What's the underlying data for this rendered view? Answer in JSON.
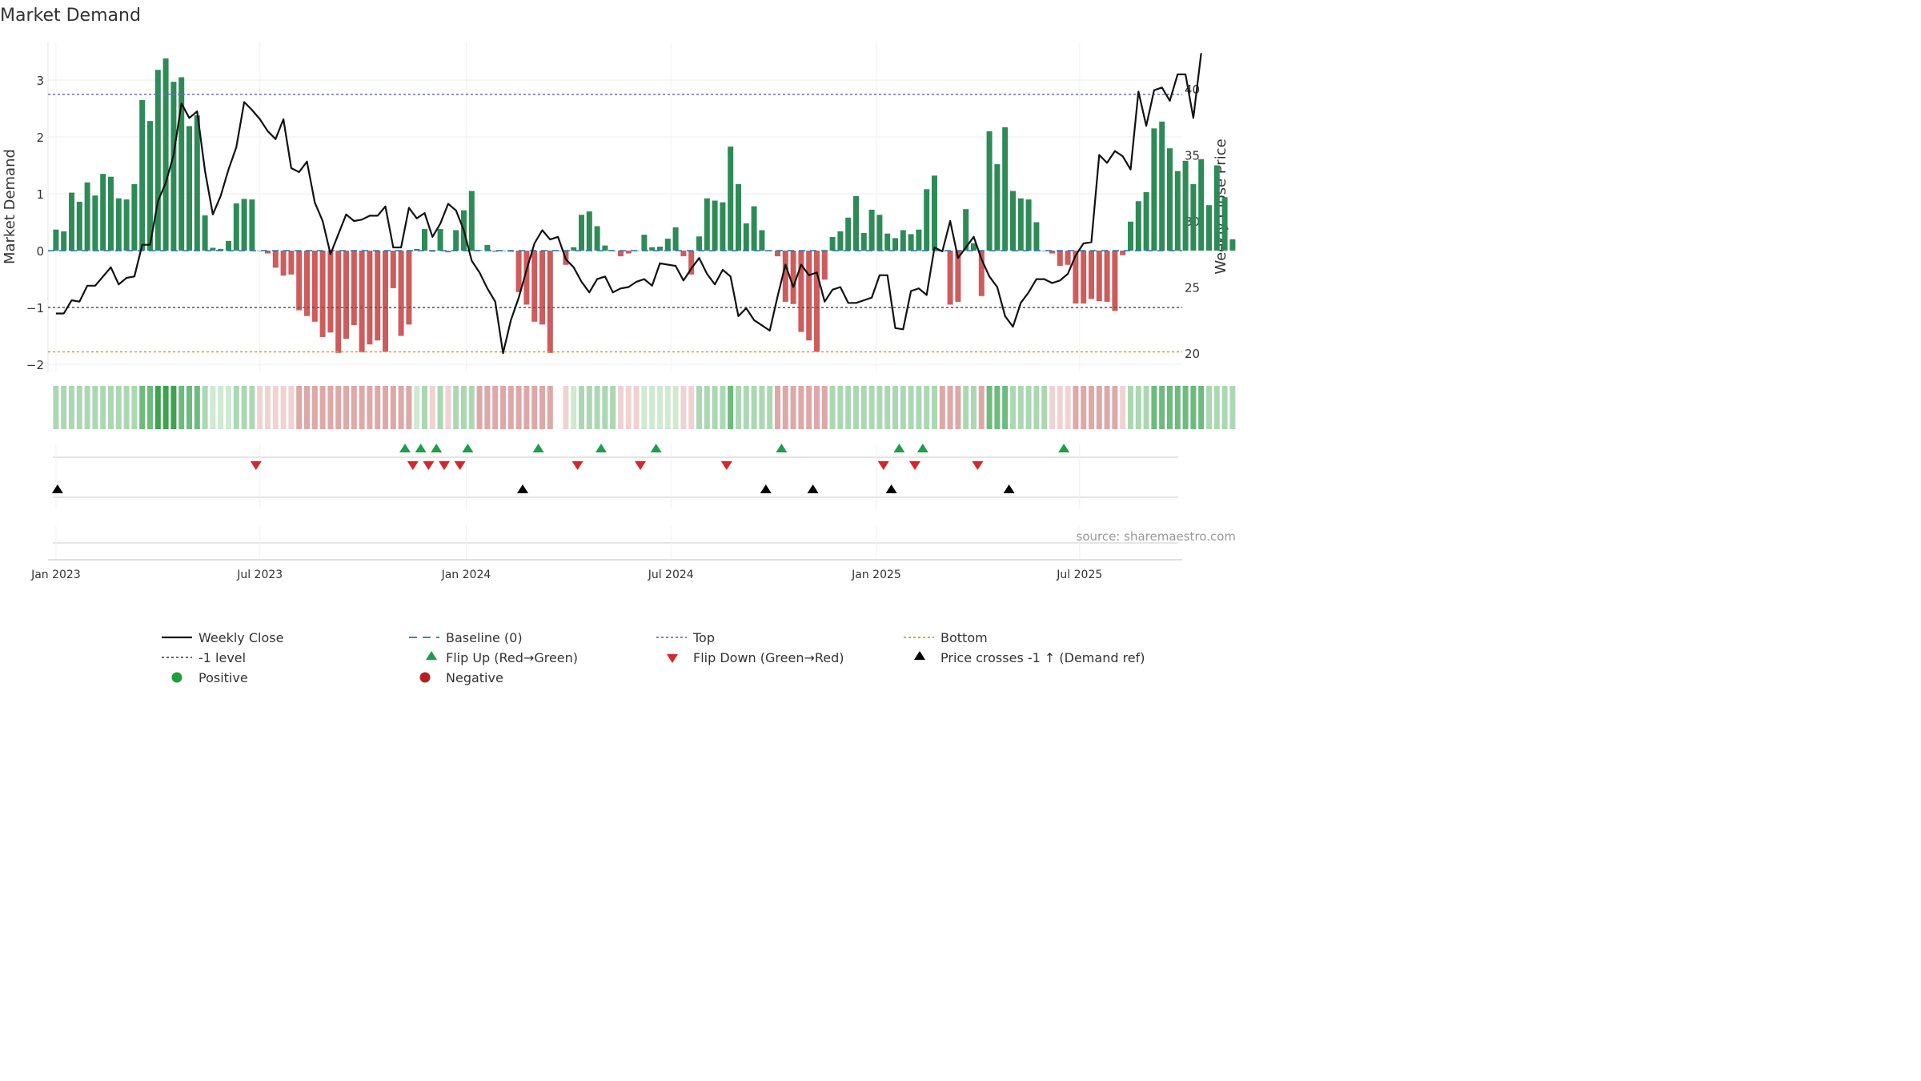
{
  "chart_data": {
    "type": "bar",
    "title": "Market Demand",
    "ylabel_left": "Market Demand",
    "ylabel_right": "Weekly Close Price",
    "source": "source: sharemaestro.com",
    "x_ticks": [
      {
        "label": "Jan 2023",
        "week": 1
      },
      {
        "label": "Jul 2023",
        "week": 27
      },
      {
        "label": "Jan 2024",
        "week": 53.3
      },
      {
        "label": "Jul 2024",
        "week": 79.4
      },
      {
        "label": "Jan 2025",
        "week": 105.6
      },
      {
        "label": "Jul 2025",
        "week": 131.5
      }
    ],
    "y_left": {
      "min": -2.2,
      "max": 3.6,
      "ticks": [
        {
          "v": 3,
          "label": "3"
        },
        {
          "v": 2,
          "label": "2"
        },
        {
          "v": 1,
          "label": "1"
        },
        {
          "v": 0,
          "label": "0"
        },
        {
          "v": -1,
          "label": "−1"
        },
        {
          "v": -2,
          "label": "−2"
        }
      ]
    },
    "y_right": {
      "min": 19.2,
      "max": 43.6,
      "ticks": [
        {
          "v": 40,
          "label": "40"
        },
        {
          "v": 35,
          "label": "35"
        },
        {
          "v": 30,
          "label": "30"
        },
        {
          "v": 25,
          "label": "25"
        },
        {
          "v": 20,
          "label": "20"
        }
      ]
    },
    "reference_lines": {
      "baseline": 0,
      "top": 2.75,
      "minus1": -1,
      "bottom": -1.78
    },
    "demand": [
      0.37,
      0.34,
      1.02,
      0.86,
      1.2,
      0.97,
      1.35,
      1.3,
      0.92,
      0.9,
      1.17,
      2.65,
      2.28,
      3.18,
      3.38,
      2.97,
      3.05,
      2.19,
      2.38,
      0.62,
      0.05,
      0.03,
      0.17,
      0.83,
      0.91,
      0.9,
      0.0,
      -0.05,
      -0.3,
      -0.44,
      -0.42,
      -1.05,
      -1.15,
      -1.25,
      -1.52,
      -1.44,
      -1.8,
      -1.55,
      -1.31,
      -1.79,
      -1.65,
      -1.58,
      -1.78,
      -0.66,
      -1.5,
      -1.3,
      0.03,
      0.38,
      -0.02,
      0.38,
      -0.03,
      0.36,
      0.71,
      1.05,
      0.01,
      0.1,
      -0.02,
      -0.01,
      -0.02,
      -0.73,
      -0.95,
      -1.25,
      -1.3,
      -1.8,
      -0.01,
      -0.25,
      0.06,
      0.63,
      0.69,
      0.43,
      0.09,
      0.0,
      -0.1,
      -0.05,
      0.0,
      0.28,
      0.06,
      0.07,
      0.21,
      0.41,
      -0.1,
      -0.42,
      0.25,
      0.92,
      0.88,
      0.85,
      1.83,
      1.17,
      0.48,
      0.78,
      0.36,
      0.0,
      -0.1,
      -0.9,
      -0.94,
      -1.43,
      -1.58,
      -1.78,
      -0.51,
      0.24,
      0.34,
      0.58,
      0.96,
      0.31,
      0.72,
      0.63,
      0.3,
      0.22,
      0.36,
      0.29,
      0.37,
      1.08,
      1.32,
      -0.01,
      -0.95,
      -0.9,
      0.73,
      0.13,
      -0.8,
      2.1,
      1.52,
      2.17,
      1.05,
      0.92,
      0.9,
      0.5,
      0.0,
      -0.05,
      -0.27,
      -0.25,
      -0.93,
      -0.93,
      -0.85,
      -0.89,
      -0.9,
      -1.06,
      -0.08,
      0.51,
      0.87,
      1.03,
      2.15,
      2.27,
      1.8,
      1.4,
      1.58,
      1.17,
      1.61,
      0.8,
      1.5,
      0.94,
      0.2,
      0.89
    ],
    "close": [
      23.0,
      23.0,
      24.0,
      23.9,
      25.1,
      25.1,
      25.8,
      26.5,
      25.2,
      25.7,
      25.8,
      28.2,
      28.2,
      31.5,
      32.9,
      35.0,
      38.9,
      37.8,
      38.3,
      33.8,
      30.5,
      31.9,
      33.9,
      35.6,
      39.0,
      38.4,
      37.7,
      36.8,
      36.2,
      37.7,
      34.0,
      33.7,
      34.5,
      31.4,
      30.0,
      27.5,
      29.0,
      30.5,
      30.0,
      30.1,
      30.4,
      30.4,
      31.1,
      28.0,
      28.0,
      31.0,
      30.2,
      30.6,
      28.8,
      29.8,
      31.3,
      30.8,
      29.3,
      27.0,
      26.1,
      24.9,
      23.9,
      20.0,
      22.5,
      24.2,
      26.3,
      28.3,
      29.3,
      28.6,
      28.8,
      27.1,
      26.5,
      25.4,
      24.6,
      25.6,
      25.8,
      24.6,
      24.9,
      25.0,
      25.4,
      25.6,
      25.1,
      26.8,
      26.7,
      26.6,
      25.5,
      26.4,
      27.2,
      26.0,
      25.2,
      26.3,
      25.8,
      22.8,
      23.4,
      22.5,
      22.1,
      21.7,
      24.3,
      26.7,
      25.0,
      26.7,
      25.9,
      26.1,
      23.9,
      24.8,
      25.0,
      23.8,
      23.8,
      24.0,
      24.2,
      25.9,
      25.9,
      21.9,
      21.8,
      24.7,
      24.9,
      24.4,
      28.0,
      27.7,
      30.0,
      27.2,
      28.0,
      28.8,
      27.1,
      25.8,
      25.0,
      22.8,
      22.0,
      23.8,
      24.6,
      25.6,
      25.6,
      25.3,
      25.5,
      26.0,
      27.4,
      28.3,
      28.4,
      35.0,
      34.4,
      35.3,
      34.9,
      33.9,
      39.8,
      37.2,
      39.9,
      40.1,
      39.1,
      41.1,
      41.1,
      37.8,
      42.7
    ],
    "heat_strip": [
      {
        "sign": "pos",
        "level": 2
      },
      {
        "sign": "pos",
        "level": 2
      },
      {
        "sign": "pos",
        "level": 2
      },
      {
        "sign": "pos",
        "level": 2
      },
      {
        "sign": "pos",
        "level": 2
      },
      {
        "sign": "pos",
        "level": 2
      },
      {
        "sign": "pos",
        "level": 2
      },
      {
        "sign": "pos",
        "level": 2
      },
      {
        "sign": "pos",
        "level": 2
      },
      {
        "sign": "pos",
        "level": 2
      },
      {
        "sign": "pos",
        "level": 2
      },
      {
        "sign": "pos",
        "level": 3
      },
      {
        "sign": "pos",
        "level": 3
      },
      {
        "sign": "pos",
        "level": 4
      },
      {
        "sign": "pos",
        "level": 4
      },
      {
        "sign": "pos",
        "level": 4
      },
      {
        "sign": "pos",
        "level": 3
      },
      {
        "sign": "pos",
        "level": 3
      },
      {
        "sign": "pos",
        "level": 3
      },
      {
        "sign": "pos",
        "level": 2
      },
      {
        "sign": "pos",
        "level": 1
      },
      {
        "sign": "pos",
        "level": 1
      },
      {
        "sign": "pos",
        "level": 1
      },
      {
        "sign": "pos",
        "level": 2
      },
      {
        "sign": "pos",
        "level": 2
      },
      {
        "sign": "pos",
        "level": 2
      },
      {
        "sign": "neg",
        "level": 1
      },
      {
        "sign": "neg",
        "level": 1
      },
      {
        "sign": "neg",
        "level": 1
      },
      {
        "sign": "neg",
        "level": 1
      },
      {
        "sign": "neg",
        "level": 1
      },
      {
        "sign": "neg",
        "level": 2
      },
      {
        "sign": "neg",
        "level": 2
      },
      {
        "sign": "neg",
        "level": 2
      },
      {
        "sign": "neg",
        "level": 2
      },
      {
        "sign": "neg",
        "level": 2
      },
      {
        "sign": "neg",
        "level": 2
      },
      {
        "sign": "neg",
        "level": 2
      },
      {
        "sign": "neg",
        "level": 2
      },
      {
        "sign": "neg",
        "level": 2
      },
      {
        "sign": "neg",
        "level": 2
      },
      {
        "sign": "neg",
        "level": 2
      },
      {
        "sign": "neg",
        "level": 2
      },
      {
        "sign": "neg",
        "level": 2
      },
      {
        "sign": "neg",
        "level": 2
      },
      {
        "sign": "neg",
        "level": 2
      },
      {
        "sign": "pos",
        "level": 1
      },
      {
        "sign": "pos",
        "level": 2
      },
      {
        "sign": "neg",
        "level": 1
      },
      {
        "sign": "pos",
        "level": 2
      },
      {
        "sign": "neg",
        "level": 1
      },
      {
        "sign": "pos",
        "level": 2
      },
      {
        "sign": "pos",
        "level": 2
      },
      {
        "sign": "pos",
        "level": 2
      },
      {
        "sign": "neg",
        "level": 2
      },
      {
        "sign": "neg",
        "level": 2
      },
      {
        "sign": "neg",
        "level": 2
      },
      {
        "sign": "neg",
        "level": 2
      },
      {
        "sign": "neg",
        "level": 2
      },
      {
        "sign": "neg",
        "level": 2
      },
      {
        "sign": "neg",
        "level": 2
      },
      {
        "sign": "neg",
        "level": 2
      },
      {
        "sign": "neg",
        "level": 2
      },
      {
        "sign": "neg",
        "level": 2
      },
      {
        "sign": "none",
        "level": 0
      },
      {
        "sign": "neg",
        "level": 1
      },
      {
        "sign": "pos",
        "level": 1
      },
      {
        "sign": "pos",
        "level": 2
      },
      {
        "sign": "pos",
        "level": 2
      },
      {
        "sign": "pos",
        "level": 2
      },
      {
        "sign": "pos",
        "level": 2
      },
      {
        "sign": "pos",
        "level": 2
      },
      {
        "sign": "neg",
        "level": 1
      },
      {
        "sign": "neg",
        "level": 1
      },
      {
        "sign": "neg",
        "level": 1
      },
      {
        "sign": "pos",
        "level": 1
      },
      {
        "sign": "pos",
        "level": 1
      },
      {
        "sign": "pos",
        "level": 1
      },
      {
        "sign": "pos",
        "level": 1
      },
      {
        "sign": "pos",
        "level": 1
      },
      {
        "sign": "neg",
        "level": 1
      },
      {
        "sign": "neg",
        "level": 1
      },
      {
        "sign": "pos",
        "level": 2
      },
      {
        "sign": "pos",
        "level": 2
      },
      {
        "sign": "pos",
        "level": 2
      },
      {
        "sign": "pos",
        "level": 2
      },
      {
        "sign": "pos",
        "level": 3
      },
      {
        "sign": "pos",
        "level": 2
      },
      {
        "sign": "pos",
        "level": 2
      },
      {
        "sign": "pos",
        "level": 2
      },
      {
        "sign": "pos",
        "level": 2
      },
      {
        "sign": "pos",
        "level": 2
      },
      {
        "sign": "neg",
        "level": 2
      },
      {
        "sign": "neg",
        "level": 2
      },
      {
        "sign": "neg",
        "level": 2
      },
      {
        "sign": "neg",
        "level": 2
      },
      {
        "sign": "neg",
        "level": 2
      },
      {
        "sign": "neg",
        "level": 2
      },
      {
        "sign": "neg",
        "level": 2
      },
      {
        "sign": "pos",
        "level": 2
      },
      {
        "sign": "pos",
        "level": 2
      },
      {
        "sign": "pos",
        "level": 2
      },
      {
        "sign": "pos",
        "level": 2
      },
      {
        "sign": "pos",
        "level": 2
      },
      {
        "sign": "pos",
        "level": 2
      },
      {
        "sign": "pos",
        "level": 2
      },
      {
        "sign": "pos",
        "level": 2
      },
      {
        "sign": "pos",
        "level": 2
      },
      {
        "sign": "pos",
        "level": 2
      },
      {
        "sign": "pos",
        "level": 2
      },
      {
        "sign": "pos",
        "level": 2
      },
      {
        "sign": "pos",
        "level": 2
      },
      {
        "sign": "pos",
        "level": 2
      },
      {
        "sign": "neg",
        "level": 2
      },
      {
        "sign": "neg",
        "level": 2
      },
      {
        "sign": "neg",
        "level": 2
      },
      {
        "sign": "pos",
        "level": 2
      },
      {
        "sign": "pos",
        "level": 2
      },
      {
        "sign": "neg",
        "level": 2
      },
      {
        "sign": "pos",
        "level": 3
      },
      {
        "sign": "pos",
        "level": 3
      },
      {
        "sign": "pos",
        "level": 3
      },
      {
        "sign": "pos",
        "level": 2
      },
      {
        "sign": "pos",
        "level": 2
      },
      {
        "sign": "pos",
        "level": 2
      },
      {
        "sign": "pos",
        "level": 2
      },
      {
        "sign": "pos",
        "level": 2
      },
      {
        "sign": "neg",
        "level": 1
      },
      {
        "sign": "neg",
        "level": 1
      },
      {
        "sign": "neg",
        "level": 1
      },
      {
        "sign": "neg",
        "level": 2
      },
      {
        "sign": "neg",
        "level": 2
      },
      {
        "sign": "neg",
        "level": 2
      },
      {
        "sign": "neg",
        "level": 2
      },
      {
        "sign": "neg",
        "level": 2
      },
      {
        "sign": "neg",
        "level": 2
      },
      {
        "sign": "neg",
        "level": 1
      },
      {
        "sign": "pos",
        "level": 2
      },
      {
        "sign": "pos",
        "level": 2
      },
      {
        "sign": "pos",
        "level": 2
      },
      {
        "sign": "pos",
        "level": 3
      },
      {
        "sign": "pos",
        "level": 3
      },
      {
        "sign": "pos",
        "level": 3
      },
      {
        "sign": "pos",
        "level": 3
      },
      {
        "sign": "pos",
        "level": 3
      },
      {
        "sign": "pos",
        "level": 3
      },
      {
        "sign": "pos",
        "level": 3
      },
      {
        "sign": "pos",
        "level": 2
      },
      {
        "sign": "pos",
        "level": 2
      },
      {
        "sign": "pos",
        "level": 2
      },
      {
        "sign": "pos",
        "level": 2
      },
      {
        "sign": "pos",
        "level": 2
      }
    ],
    "flip_up_weeks": [
      45.5,
      47.5,
      49.5,
      53.5,
      62.5,
      70.5,
      77.5,
      93.5,
      108.5,
      111.5,
      129.5
    ],
    "flip_down_weeks": [
      26.5,
      46.5,
      48.5,
      50.5,
      52.5,
      67.5,
      75.5,
      86.5,
      106.5,
      110.5,
      118.5
    ],
    "price_cross_weeks": [
      1.2,
      60.5,
      91.5,
      97.5,
      107.5,
      122.5
    ],
    "legend": [
      {
        "label": "Weekly Close",
        "kind": "line-solid"
      },
      {
        "label": "Baseline (0)",
        "kind": "line-dash"
      },
      {
        "label": "Top",
        "kind": "line-dot-blue"
      },
      {
        "label": "Bottom",
        "kind": "line-dot-orange"
      },
      {
        "label": "-1 level",
        "kind": "line-dot-gray"
      },
      {
        "label": "Flip Up (Red→Green)",
        "kind": "tri-up-green"
      },
      {
        "label": "Flip Down (Green→Red)",
        "kind": "tri-down-red"
      },
      {
        "label": "Price crosses -1 ↑ (Demand ref)",
        "kind": "tri-up-black"
      },
      {
        "label": "Positive",
        "kind": "dot-green"
      },
      {
        "label": "Negative",
        "kind": "dot-red"
      }
    ],
    "colors": {
      "positive": "#2e8b57",
      "negative": "#cd5c5c",
      "price": "#111111",
      "baseline": "#1f77b4",
      "top": "#6a6ad8",
      "bottom": "#e09a1a",
      "minus1": "#555555",
      "flip_up": "#1e9e4a",
      "flip_down": "#d62728",
      "cross": "#000000",
      "legend_positive": "#1f9e3a",
      "legend_negative": "#b22222"
    }
  }
}
